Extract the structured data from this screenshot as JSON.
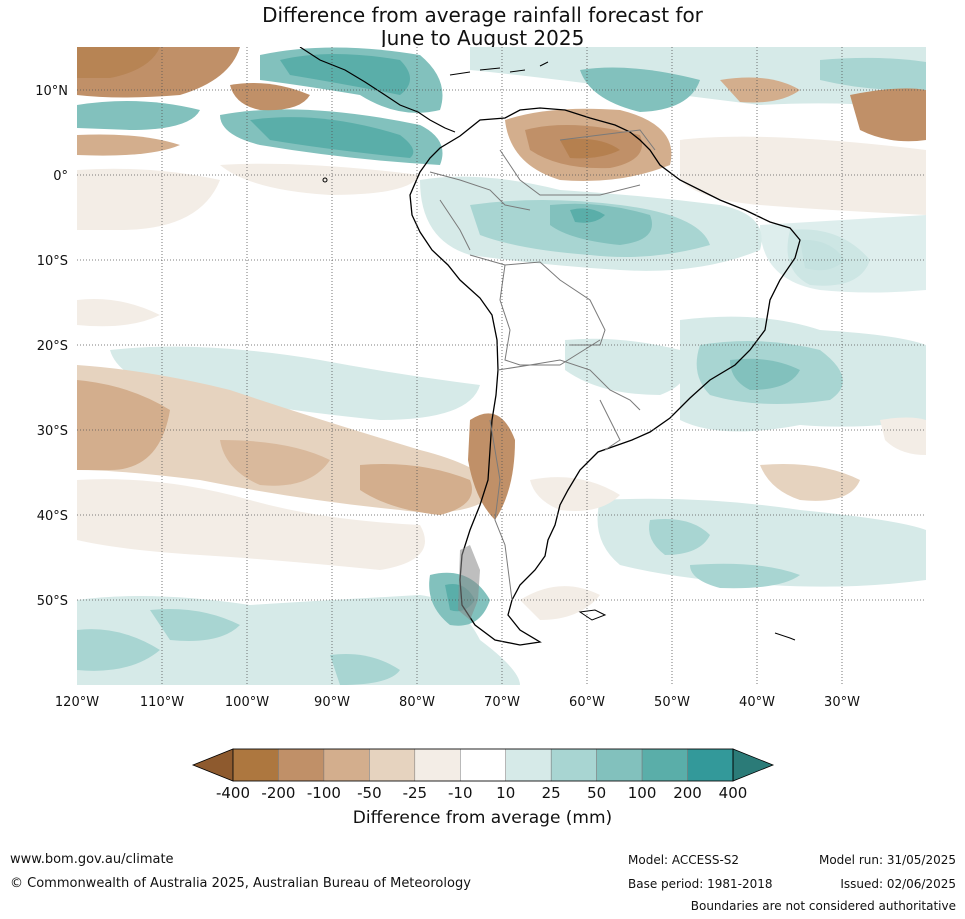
{
  "title": {
    "line1": "Difference from average rainfall forecast for",
    "line2": "June to August 2025"
  },
  "map": {
    "lon_labels": [
      "120°W",
      "110°W",
      "100°W",
      "90°W",
      "80°W",
      "70°W",
      "60°W",
      "50°W",
      "40°W",
      "30°W"
    ],
    "lat_labels": [
      "10°N",
      "0°",
      "10°S",
      "20°S",
      "30°S",
      "40°S",
      "50°S"
    ],
    "colors": {
      "ocean_bg": "#ffffff",
      "coast": "#000000",
      "borders": "#7a7a7a",
      "grid": "#555555"
    }
  },
  "colorbar": {
    "labels": [
      "-400",
      "-200",
      "-100",
      "-50",
      "-25",
      "-10",
      "10",
      "25",
      "50",
      "100",
      "200",
      "400"
    ],
    "colors": [
      "#8e5a2e",
      "#ad773f",
      "#c09068",
      "#d3ae8d",
      "#e6d3bf",
      "#f3ede6",
      "#ffffff",
      "#d6eae8",
      "#a8d5d2",
      "#82c1bd",
      "#5aaea9",
      "#33999a",
      "#2b7b78"
    ],
    "title": "Difference from average (mm)"
  },
  "footer": {
    "website": "www.bom.gov.au/climate",
    "copyright": "© Commonwealth of Australia 2025, Australian Bureau of Meteorology",
    "model": "Model: ACCESS-S2",
    "base_period": "Base period: 1981-2018",
    "model_run": "Model run: 31/05/2025",
    "issued": "Issued: 02/06/2025",
    "boundaries": "Boundaries are not considered authoritative"
  }
}
